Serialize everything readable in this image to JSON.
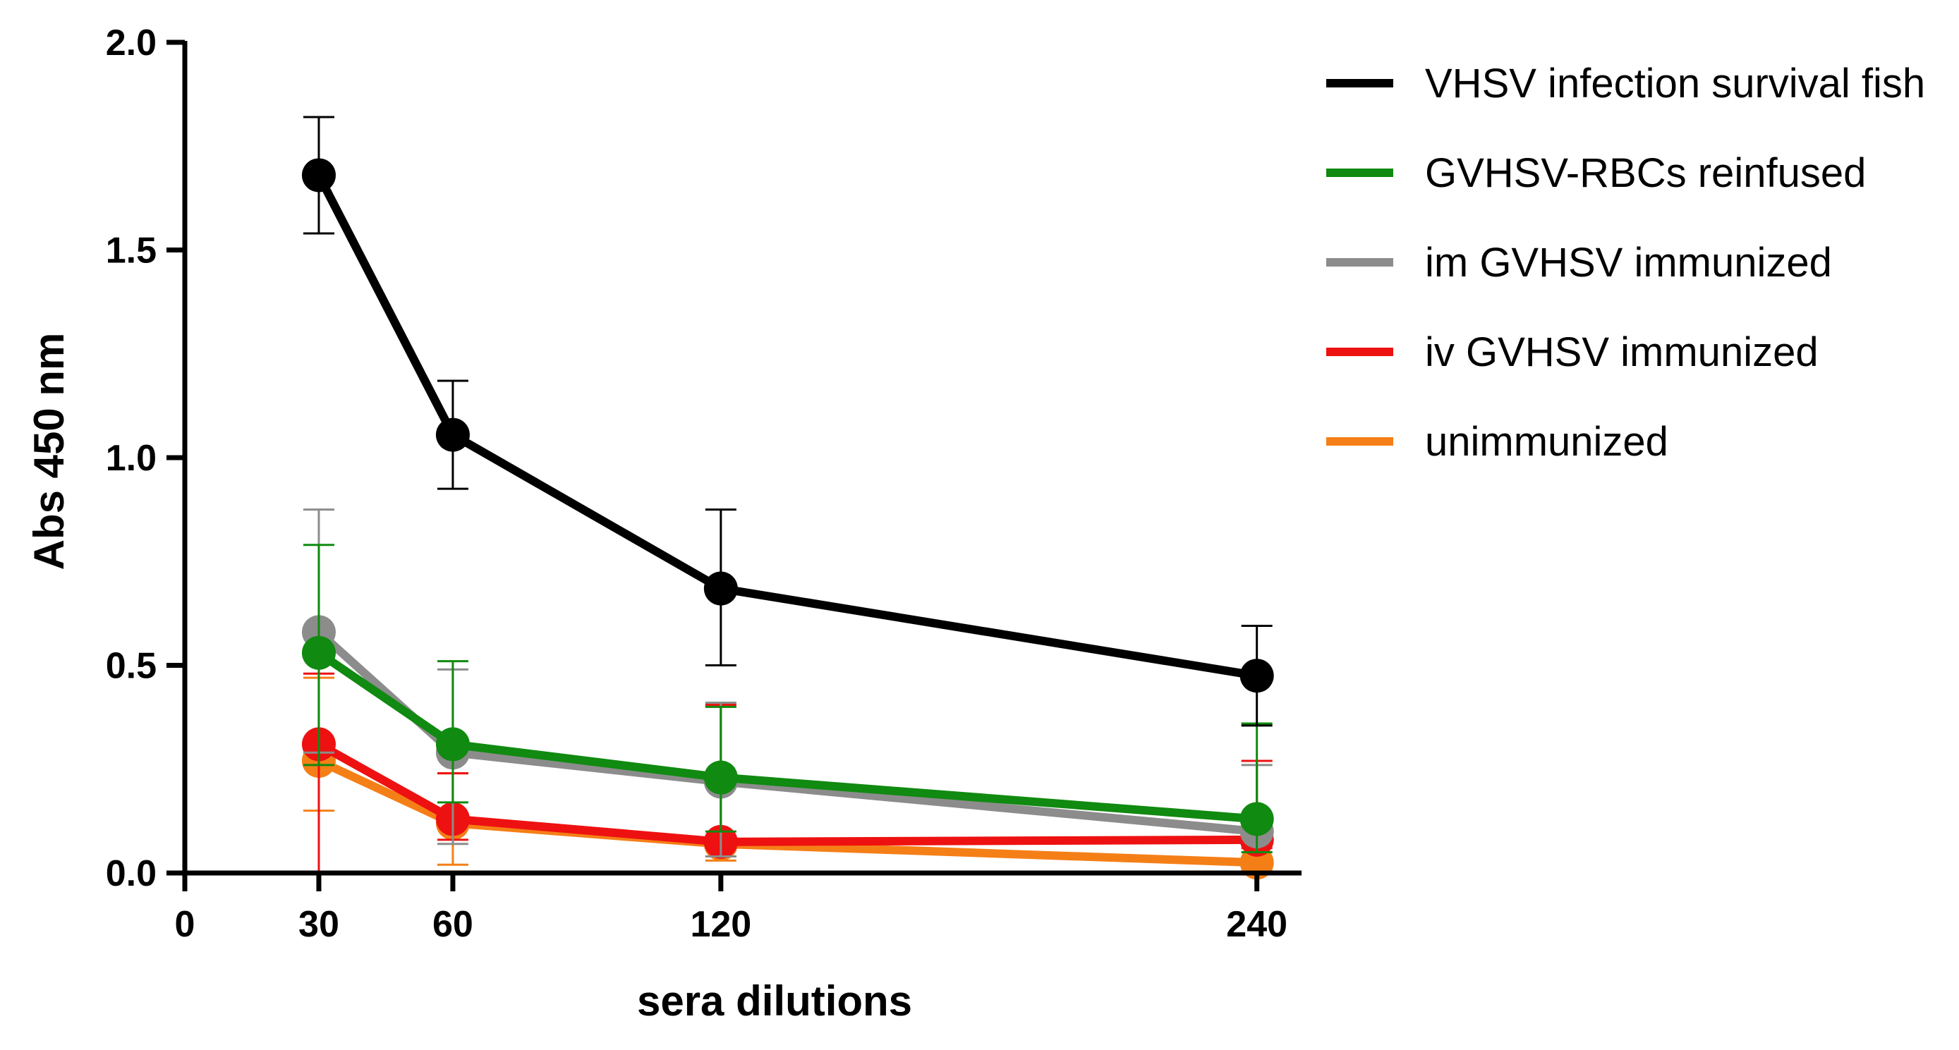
{
  "chart_data": {
    "type": "line",
    "xlabel": "sera dilutions",
    "ylabel": "Abs 450 nm",
    "x_ticks": [
      0,
      30,
      60,
      120,
      240
    ],
    "y_ticks": [
      "0.0",
      "0.5",
      "1.0",
      "1.5",
      "2.0"
    ],
    "xlim": [
      0,
      250
    ],
    "ylim": [
      0,
      2.0
    ],
    "x": [
      30,
      60,
      120,
      240
    ],
    "legend_position": "right",
    "series": [
      {
        "name": "unimmunized",
        "color": "#F57F17",
        "values": [
          0.27,
          0.12,
          0.07,
          0.025
        ],
        "err_low": [
          0.12,
          0.1,
          0.04,
          0.02
        ],
        "err_high": [
          0.2,
          0.12,
          0.33,
          0.245
        ]
      },
      {
        "name": "iv GVHSV immunized",
        "color": "#EE1111",
        "values": [
          0.31,
          0.13,
          0.075,
          0.08
        ],
        "err_low": [
          0.31,
          0.05,
          0.035,
          0.02
        ],
        "err_high": [
          0.17,
          0.11,
          0.33,
          0.19
        ]
      },
      {
        "name": "im GVHSV immunized",
        "color": "#8C8C8C",
        "values": [
          0.58,
          0.29,
          0.22,
          0.1
        ],
        "err_low": [
          0.29,
          0.22,
          0.18,
          0.05
        ],
        "err_high": [
          0.295,
          0.2,
          0.19,
          0.16
        ]
      },
      {
        "name": "GVHSV-RBCs reinfused",
        "color": "#108A10",
        "values": [
          0.53,
          0.31,
          0.23,
          0.13
        ],
        "err_low": [
          0.27,
          0.14,
          0.13,
          0.08
        ],
        "err_high": [
          0.26,
          0.2,
          0.17,
          0.23
        ]
      },
      {
        "name": "VHSV infection survival fish",
        "color": "#000000",
        "values": [
          1.68,
          1.055,
          0.685,
          0.475
        ],
        "err_low": [
          0.14,
          0.13,
          0.185,
          0.12
        ],
        "err_high": [
          0.14,
          0.13,
          0.19,
          0.12
        ]
      }
    ],
    "legend_order": [
      "VHSV infection survival fish",
      "GVHSV-RBCs reinfused",
      "im GVHSV immunized",
      "iv GVHSV immunized",
      "unimmunized"
    ]
  }
}
